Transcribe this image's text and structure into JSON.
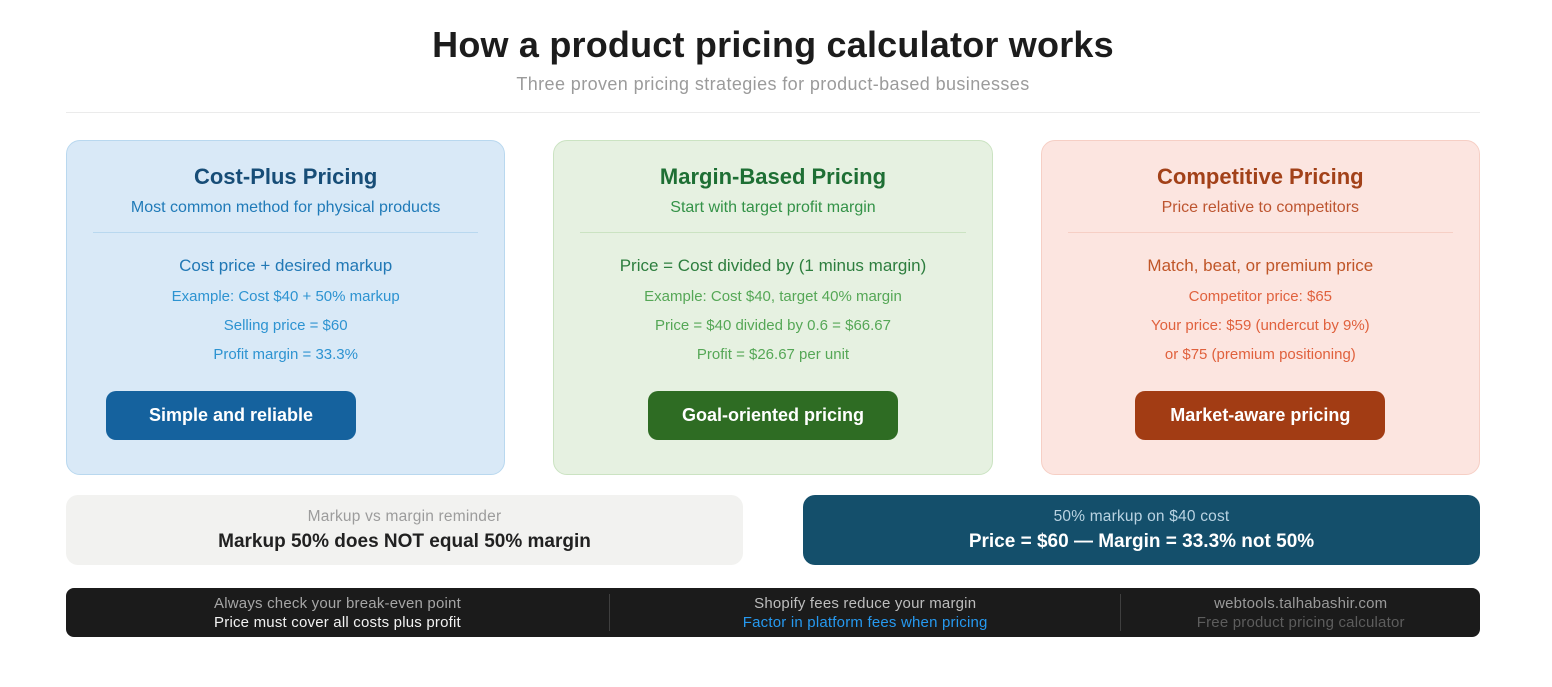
{
  "page": {
    "title": "How a product pricing calculator works",
    "subtitle": "Three proven pricing strategies for product-based businesses"
  },
  "cards": [
    {
      "title": "Cost-Plus Pricing",
      "subtitle": "Most common method for physical products",
      "formula": "Cost price + desired markup",
      "lines": [
        "Example: Cost $40 + 50% markup",
        "Selling price = $60",
        "Profit margin = 33.3%"
      ],
      "button_label": "Simple and reliable",
      "colors": {
        "bg": "#d9e9f7",
        "bd": "#b9d8ef",
        "strong": "#174d77",
        "mid": "#1f7ab8",
        "mid2": "#2178b5",
        "light": "#2d93d1",
        "btn": "#15629e"
      }
    },
    {
      "title": "Margin-Based Pricing",
      "subtitle": "Start with target profit margin",
      "formula": "Price = Cost divided by (1 minus margin)",
      "lines": [
        "Example: Cost $40, target 40% margin",
        "Price = $40 divided by 0.6 = $66.67",
        "Profit = $26.67 per unit"
      ],
      "button_label": "Goal-oriented pricing",
      "colors": {
        "bg": "#e6f1e1",
        "bd": "#cbe3c2",
        "strong": "#1e6f34",
        "mid": "#339247",
        "mid2": "#2d7e3e",
        "light": "#55a756",
        "btn": "#2e6c23"
      }
    },
    {
      "title": "Competitive Pricing",
      "subtitle": "Price relative to competitors",
      "formula": "Match, beat, or premium price",
      "lines": [
        "Competitor price: $65",
        "Your price: $59 (undercut by 9%)",
        "or $75 (premium positioning)"
      ],
      "button_label": "Market-aware pricing",
      "colors": {
        "bg": "#fce5e0",
        "bd": "#f6cfc5",
        "strong": "#a24119",
        "mid": "#bd5530",
        "mid2": "#c05628",
        "light": "#e0613d",
        "btn": "#a23c14"
      }
    }
  ],
  "notes": {
    "left": {
      "title": "Markup vs margin reminder",
      "text": "Markup 50% does NOT equal 50% margin"
    },
    "right": {
      "title": "50% markup on $40 cost",
      "text": "Price = $60 — Margin = 33.3% not 50%"
    }
  },
  "footer": {
    "sections": [
      {
        "line1": "Always check your break-even point",
        "line2": "Price must cover all costs plus profit"
      },
      {
        "line1": "Shopify fees reduce your margin",
        "line2": "Factor in platform fees when pricing"
      },
      {
        "line1": "webtools.talhabashir.com",
        "line2": "Free product pricing calculator"
      }
    ]
  },
  "colors": {
    "title-color": "#1c1c1c",
    "subtitle-color": "#9b9b9b",
    "note-plain-bg": "#f2f2f0",
    "note-plain-title": "#9c9c9c",
    "note-plain-text": "#212121",
    "note-teal-bg": "#144f6b",
    "note-teal-title": "#b9d3e2",
    "note-teal-text": "#ffffff",
    "footer-bg": "#1b1b1b",
    "footer-accent-blue": "#2699ef"
  }
}
